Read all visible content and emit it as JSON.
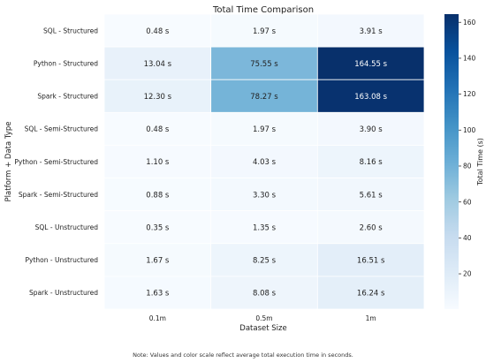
{
  "chart_data": {
    "type": "heatmap",
    "title": "Total Time Comparison",
    "xlabel": "Dataset Size",
    "ylabel": "Platform + Data Type",
    "colorbar_label": "Total Time (s)",
    "colormap": "Blues",
    "color_low": "#f7fbff",
    "color_high": "#08306b",
    "colorbar_range": [
      0.35,
      164.55
    ],
    "colorbar_ticks": [
      20,
      40,
      60,
      80,
      100,
      120,
      140,
      160
    ],
    "x_categories": [
      "0.1m",
      "0.5m",
      "1m"
    ],
    "y_categories": [
      "SQL - Structured",
      "Python - Structured",
      "Spark - Structured",
      "SQL - Semi-Structured",
      "Python - Semi-Structured",
      "Spark - Semi-Structured",
      "SQL - Unstructured",
      "Python - Unstructured",
      "Spark - Unstructured"
    ],
    "values": [
      [
        0.48,
        1.97,
        3.91
      ],
      [
        13.04,
        75.55,
        164.55
      ],
      [
        12.3,
        78.27,
        163.08
      ],
      [
        0.48,
        1.97,
        3.9
      ],
      [
        1.1,
        4.03,
        8.16
      ],
      [
        0.88,
        3.3,
        5.61
      ],
      [
        0.35,
        1.35,
        2.6
      ],
      [
        1.67,
        8.25,
        16.51
      ],
      [
        1.63,
        8.08,
        16.24
      ]
    ],
    "value_suffix": " s",
    "value_decimals": 2
  },
  "note": "Note: Values and color scale reflect average total execution time in seconds."
}
